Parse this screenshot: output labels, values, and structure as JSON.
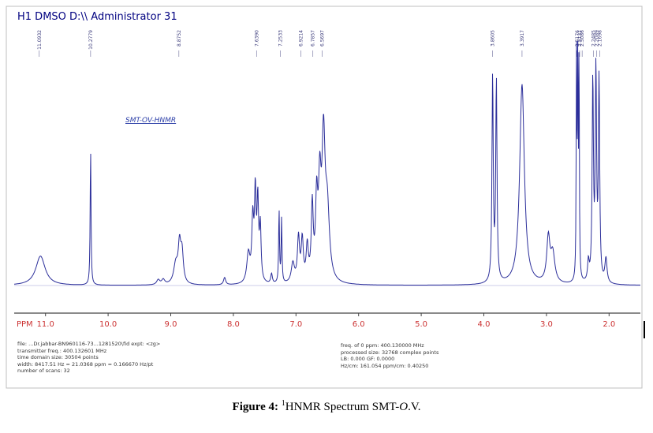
{
  "header": {
    "title": "H1 DMSO D:\\\\ Administrator 31"
  },
  "inner_title": "SMT-OV-HNMR",
  "param_left": [
    "file: ...Dr.jabbar-BN960116-73...1281520\\fid   expt: <zg>",
    "transmitter freq.: 400.132601 MHz",
    "time domain size: 30504 points",
    "width: 8417.51 Hz = 21.0368 ppm = 0.166670 Hz/pt",
    "number of scans: 32"
  ],
  "param_right": [
    "freq. of 0 ppm: 400.130000 MHz",
    "processed size: 32768 complex points",
    "LB: 0.000    GF: 0.0000",
    "Hz/cm: 161.054    ppm/cm: 0.40250"
  ],
  "caption": {
    "label": "Figure 4:",
    "sup": "1",
    "text": "HNMR Spectrum SMT-",
    "italic": "O",
    "end": ".V."
  },
  "colors": {
    "trace": "#2b2e9a",
    "axis": "#444444",
    "ticklabel": "#cc3333",
    "frame": "#9a9a9a"
  },
  "chart_data": {
    "type": "line",
    "xlabel": "PPM",
    "xlim": [
      11.5,
      1.5
    ],
    "x_reversed": true,
    "tick_labels": [
      "11.0",
      "10.0",
      "9.0",
      "8.0",
      "7.0",
      "6.0",
      "5.0",
      "4.0",
      "3.0",
      "2.0"
    ],
    "ticks": [
      11.0,
      10.0,
      9.0,
      8.0,
      7.0,
      6.0,
      5.0,
      4.0,
      3.0,
      2.0
    ],
    "peak_labels": [
      {
        "ppm": 11.1,
        "label": "11.0932"
      },
      {
        "ppm": 10.28,
        "label": "10.2779"
      },
      {
        "ppm": 8.87,
        "label": "8.8752"
      },
      {
        "ppm": 7.63,
        "label": "7.6390"
      },
      {
        "ppm": 7.25,
        "label": "7.2533"
      },
      {
        "ppm": 6.92,
        "label": "6.9214"
      },
      {
        "ppm": 6.73,
        "label": "6.7857"
      },
      {
        "ppm": 6.58,
        "label": "6.5697"
      },
      {
        "ppm": 3.86,
        "label": "3.8605"
      },
      {
        "ppm": 3.39,
        "label": "3.3917"
      },
      {
        "ppm": 2.51,
        "label": "2.5176"
      },
      {
        "ppm": 2.47,
        "label": "2.5131"
      },
      {
        "ppm": 2.43,
        "label": "2.5086"
      },
      {
        "ppm": 2.25,
        "label": "2.2485"
      },
      {
        "ppm": 2.2,
        "label": "2.2089"
      },
      {
        "ppm": 2.15,
        "label": "2.1698"
      }
    ],
    "peaks": [
      {
        "ppm": 11.08,
        "height": 0.12,
        "width": 0.09
      },
      {
        "ppm": 10.28,
        "height": 0.56,
        "width": 0.008
      },
      {
        "ppm": 9.2,
        "height": 0.02,
        "width": 0.03
      },
      {
        "ppm": 9.12,
        "height": 0.02,
        "width": 0.03
      },
      {
        "ppm": 8.92,
        "height": 0.08,
        "width": 0.04
      },
      {
        "ppm": 8.86,
        "height": 0.15,
        "width": 0.025
      },
      {
        "ppm": 8.82,
        "height": 0.12,
        "width": 0.025
      },
      {
        "ppm": 8.14,
        "height": 0.03,
        "width": 0.02
      },
      {
        "ppm": 7.76,
        "height": 0.12,
        "width": 0.03
      },
      {
        "ppm": 7.69,
        "height": 0.25,
        "width": 0.018
      },
      {
        "ppm": 7.65,
        "height": 0.35,
        "width": 0.015
      },
      {
        "ppm": 7.61,
        "height": 0.32,
        "width": 0.015
      },
      {
        "ppm": 7.57,
        "height": 0.22,
        "width": 0.015
      },
      {
        "ppm": 7.39,
        "height": 0.04,
        "width": 0.015
      },
      {
        "ppm": 7.27,
        "height": 0.3,
        "width": 0.008
      },
      {
        "ppm": 7.23,
        "height": 0.26,
        "width": 0.008
      },
      {
        "ppm": 7.05,
        "height": 0.08,
        "width": 0.03
      },
      {
        "ppm": 6.96,
        "height": 0.18,
        "width": 0.02
      },
      {
        "ppm": 6.9,
        "height": 0.17,
        "width": 0.02
      },
      {
        "ppm": 6.82,
        "height": 0.14,
        "width": 0.02
      },
      {
        "ppm": 6.74,
        "height": 0.3,
        "width": 0.018
      },
      {
        "ppm": 6.67,
        "height": 0.3,
        "width": 0.02
      },
      {
        "ppm": 6.62,
        "height": 0.36,
        "width": 0.025
      },
      {
        "ppm": 6.56,
        "height": 0.55,
        "width": 0.03
      },
      {
        "ppm": 6.5,
        "height": 0.28,
        "width": 0.04
      },
      {
        "ppm": 3.86,
        "height": 0.84,
        "width": 0.012
      },
      {
        "ppm": 3.8,
        "height": 0.82,
        "width": 0.012
      },
      {
        "ppm": 3.39,
        "height": 0.82,
        "width": 0.045
      },
      {
        "ppm": 2.97,
        "height": 0.18,
        "width": 0.03
      },
      {
        "ppm": 2.9,
        "height": 0.12,
        "width": 0.04
      },
      {
        "ppm": 2.52,
        "height": 0.95,
        "width": 0.006
      },
      {
        "ppm": 2.5,
        "height": 0.95,
        "width": 0.006
      },
      {
        "ppm": 2.48,
        "height": 0.95,
        "width": 0.006
      },
      {
        "ppm": 2.33,
        "height": 0.08,
        "width": 0.015
      },
      {
        "ppm": 2.26,
        "height": 0.82,
        "width": 0.012
      },
      {
        "ppm": 2.21,
        "height": 0.85,
        "width": 0.012
      },
      {
        "ppm": 2.16,
        "height": 0.82,
        "width": 0.012
      },
      {
        "ppm": 2.05,
        "height": 0.1,
        "width": 0.02
      }
    ]
  }
}
